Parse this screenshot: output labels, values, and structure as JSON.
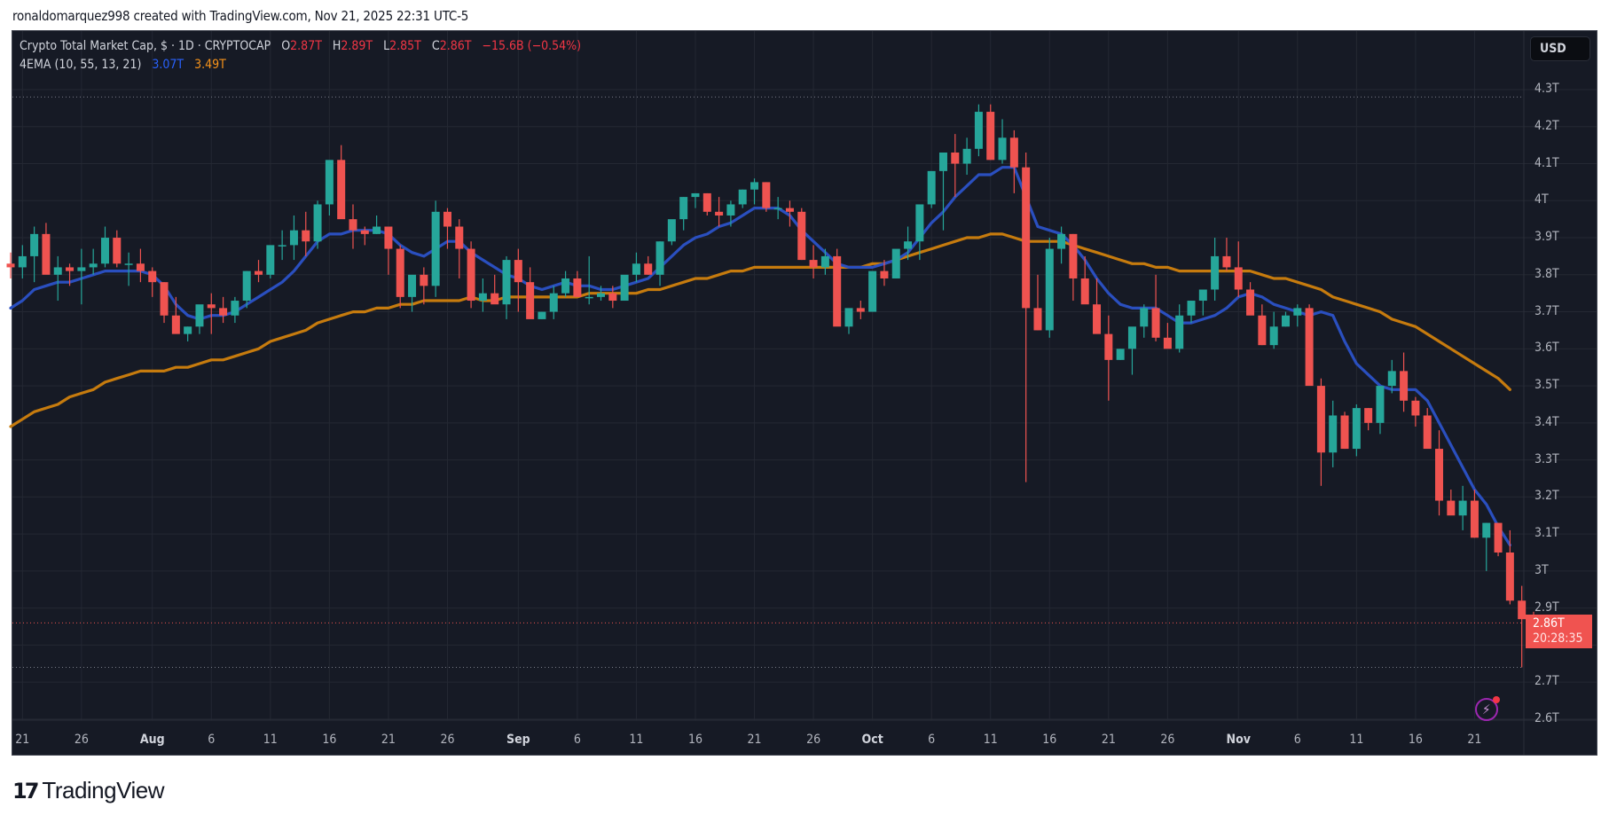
{
  "header": {
    "credit": "ronaldomarquez998 created with TradingView.com, Nov 21, 2025 22:31 UTC-5"
  },
  "legend": {
    "symbol": "Crypto Total Market Cap, $ · 1D · CRYPTOCAP",
    "o_label": "O",
    "o_value": "2.87T",
    "h_label": "H",
    "h_value": "2.89T",
    "l_label": "L",
    "l_value": "2.85T",
    "c_label": "C",
    "c_value": "2.86T",
    "change": "−15.6B (−0.54%)",
    "indicator": "4EMA (10, 55, 13, 21)",
    "ema_fast_value": "3.07T",
    "ema_slow_value": "3.49T"
  },
  "currency_button": "USD",
  "price_label": {
    "price": "2.86T",
    "countdown": "20:28:35"
  },
  "brand": {
    "name": "TradingView"
  },
  "colors": {
    "background": "#161a25",
    "up": "#26a69a",
    "down": "#ef5350",
    "ema_fast": "#2a4fbf",
    "ema_slow": "#c67b0e",
    "grid": "#242833",
    "price_line": "#f05350"
  },
  "chart_data": {
    "type": "candlestick",
    "title": "Crypto Total Market Cap, $ · 1D · CRYPTOCAP",
    "ylabel": "USD",
    "ylim": [
      2.6,
      4.3
    ],
    "y_ticks": [
      "4.3T",
      "4.2T",
      "4.1T",
      "4T",
      "3.9T",
      "3.8T",
      "3.7T",
      "3.6T",
      "3.5T",
      "3.4T",
      "3.3T",
      "3.2T",
      "3.1T",
      "3T",
      "2.9T",
      "2.8T",
      "2.7T",
      "2.6T"
    ],
    "x_ticks": [
      {
        "label": "21",
        "day": 1,
        "bold": false
      },
      {
        "label": "26",
        "day": 6,
        "bold": false
      },
      {
        "label": "Aug",
        "day": 12,
        "bold": true
      },
      {
        "label": "6",
        "day": 17,
        "bold": false
      },
      {
        "label": "11",
        "day": 22,
        "bold": false
      },
      {
        "label": "16",
        "day": 27,
        "bold": false
      },
      {
        "label": "21",
        "day": 32,
        "bold": false
      },
      {
        "label": "26",
        "day": 37,
        "bold": false
      },
      {
        "label": "Sep",
        "day": 43,
        "bold": true
      },
      {
        "label": "6",
        "day": 48,
        "bold": false
      },
      {
        "label": "11",
        "day": 53,
        "bold": false
      },
      {
        "label": "16",
        "day": 58,
        "bold": false
      },
      {
        "label": "21",
        "day": 63,
        "bold": false
      },
      {
        "label": "26",
        "day": 68,
        "bold": false
      },
      {
        "label": "Oct",
        "day": 73,
        "bold": true
      },
      {
        "label": "6",
        "day": 78,
        "bold": false
      },
      {
        "label": "11",
        "day": 83,
        "bold": false
      },
      {
        "label": "16",
        "day": 88,
        "bold": false
      },
      {
        "label": "21",
        "day": 93,
        "bold": false
      },
      {
        "label": "26",
        "day": 98,
        "bold": false
      },
      {
        "label": "Nov",
        "day": 104,
        "bold": true
      },
      {
        "label": "6",
        "day": 109,
        "bold": false
      },
      {
        "label": "11",
        "day": 114,
        "bold": false
      },
      {
        "label": "16",
        "day": 119,
        "bold": false
      },
      {
        "label": "21",
        "day": 124,
        "bold": false
      }
    ],
    "start_date": "Jul 20",
    "ohlc": [
      [
        3.83,
        3.86,
        3.79,
        3.82
      ],
      [
        3.82,
        3.88,
        3.79,
        3.85
      ],
      [
        3.85,
        3.93,
        3.78,
        3.91
      ],
      [
        3.91,
        3.94,
        3.83,
        3.8
      ],
      [
        3.8,
        3.85,
        3.73,
        3.82
      ],
      [
        3.82,
        3.83,
        3.77,
        3.81
      ],
      [
        3.81,
        3.87,
        3.72,
        3.82
      ],
      [
        3.82,
        3.87,
        3.8,
        3.83
      ],
      [
        3.83,
        3.93,
        3.82,
        3.9
      ],
      [
        3.9,
        3.92,
        3.82,
        3.83
      ],
      [
        3.83,
        3.86,
        3.77,
        3.83
      ],
      [
        3.83,
        3.87,
        3.78,
        3.81
      ],
      [
        3.81,
        3.82,
        3.74,
        3.78
      ],
      [
        3.78,
        3.78,
        3.67,
        3.69
      ],
      [
        3.69,
        3.74,
        3.65,
        3.64
      ],
      [
        3.64,
        3.66,
        3.62,
        3.66
      ],
      [
        3.66,
        3.68,
        3.64,
        3.72
      ],
      [
        3.72,
        3.75,
        3.64,
        3.71
      ],
      [
        3.71,
        3.74,
        3.67,
        3.69
      ],
      [
        3.69,
        3.74,
        3.67,
        3.73
      ],
      [
        3.73,
        3.81,
        3.71,
        3.81
      ],
      [
        3.81,
        3.84,
        3.78,
        3.8
      ],
      [
        3.8,
        3.86,
        3.79,
        3.88
      ],
      [
        3.88,
        3.92,
        3.84,
        3.88
      ],
      [
        3.88,
        3.96,
        3.84,
        3.92
      ],
      [
        3.92,
        3.97,
        3.85,
        3.89
      ],
      [
        3.89,
        4.0,
        3.87,
        3.99
      ],
      [
        3.99,
        4.03,
        3.96,
        4.11
      ],
      [
        4.11,
        4.15,
        3.99,
        3.95
      ],
      [
        3.95,
        3.99,
        3.87,
        3.92
      ],
      [
        3.92,
        3.93,
        3.88,
        3.91
      ],
      [
        3.91,
        3.96,
        3.91,
        3.93
      ],
      [
        3.93,
        3.93,
        3.8,
        3.87
      ],
      [
        3.87,
        3.88,
        3.71,
        3.74
      ],
      [
        3.74,
        3.79,
        3.7,
        3.8
      ],
      [
        3.8,
        3.82,
        3.72,
        3.77
      ],
      [
        3.77,
        4.0,
        3.74,
        3.97
      ],
      [
        3.97,
        3.98,
        3.87,
        3.93
      ],
      [
        3.93,
        3.95,
        3.79,
        3.87
      ],
      [
        3.87,
        3.89,
        3.71,
        3.73
      ],
      [
        3.73,
        3.79,
        3.7,
        3.75
      ],
      [
        3.75,
        3.8,
        3.73,
        3.72
      ],
      [
        3.72,
        3.85,
        3.68,
        3.84
      ],
      [
        3.84,
        3.87,
        3.7,
        3.78
      ],
      [
        3.78,
        3.82,
        3.71,
        3.68
      ],
      [
        3.68,
        3.7,
        3.68,
        3.7
      ],
      [
        3.7,
        3.77,
        3.68,
        3.75
      ],
      [
        3.75,
        3.81,
        3.74,
        3.79
      ],
      [
        3.79,
        3.81,
        3.74,
        3.74
      ],
      [
        3.74,
        3.85,
        3.72,
        3.74
      ],
      [
        3.74,
        3.77,
        3.73,
        3.75
      ],
      [
        3.75,
        3.77,
        3.71,
        3.73
      ],
      [
        3.73,
        3.78,
        3.73,
        3.8
      ],
      [
        3.8,
        3.86,
        3.78,
        3.83
      ],
      [
        3.83,
        3.85,
        3.8,
        3.8
      ],
      [
        3.8,
        3.89,
        3.77,
        3.89
      ],
      [
        3.89,
        3.93,
        3.88,
        3.95
      ],
      [
        3.95,
        4.01,
        3.92,
        4.01
      ],
      [
        4.01,
        4.02,
        3.98,
        4.02
      ],
      [
        4.02,
        4.02,
        3.96,
        3.97
      ],
      [
        3.97,
        4.01,
        3.93,
        3.96
      ],
      [
        3.96,
        4.0,
        3.93,
        3.99
      ],
      [
        3.99,
        4.03,
        3.98,
        4.03
      ],
      [
        4.03,
        4.06,
        3.99,
        4.05
      ],
      [
        4.05,
        4.05,
        3.97,
        3.98
      ],
      [
        3.98,
        4.01,
        3.95,
        3.98
      ],
      [
        3.98,
        4.0,
        3.93,
        3.97
      ],
      [
        3.97,
        3.98,
        3.84,
        3.84
      ],
      [
        3.84,
        3.88,
        3.79,
        3.82
      ],
      [
        3.82,
        3.87,
        3.8,
        3.85
      ],
      [
        3.85,
        3.87,
        3.81,
        3.66
      ],
      [
        3.66,
        3.7,
        3.64,
        3.71
      ],
      [
        3.71,
        3.73,
        3.68,
        3.7
      ],
      [
        3.7,
        3.79,
        3.7,
        3.81
      ],
      [
        3.81,
        3.84,
        3.77,
        3.79
      ],
      [
        3.79,
        3.84,
        3.79,
        3.87
      ],
      [
        3.87,
        3.93,
        3.84,
        3.89
      ],
      [
        3.89,
        3.89,
        3.84,
        3.99
      ],
      [
        3.99,
        4.03,
        3.98,
        4.08
      ],
      [
        4.08,
        4.12,
        3.92,
        4.13
      ],
      [
        4.13,
        4.18,
        4.01,
        4.1
      ],
      [
        4.1,
        4.17,
        4.07,
        4.14
      ],
      [
        4.14,
        4.26,
        4.12,
        4.24
      ],
      [
        4.24,
        4.26,
        4.11,
        4.11
      ],
      [
        4.11,
        4.22,
        4.1,
        4.17
      ],
      [
        4.17,
        4.19,
        4.02,
        4.09
      ],
      [
        4.09,
        4.13,
        3.24,
        3.71
      ],
      [
        3.71,
        3.8,
        3.65,
        3.65
      ],
      [
        3.65,
        3.9,
        3.63,
        3.87
      ],
      [
        3.87,
        3.93,
        3.83,
        3.91
      ],
      [
        3.91,
        3.91,
        3.73,
        3.79
      ],
      [
        3.79,
        3.85,
        3.76,
        3.72
      ],
      [
        3.72,
        3.79,
        3.68,
        3.64
      ],
      [
        3.64,
        3.69,
        3.46,
        3.57
      ],
      [
        3.57,
        3.6,
        3.57,
        3.6
      ],
      [
        3.6,
        3.65,
        3.53,
        3.66
      ],
      [
        3.66,
        3.72,
        3.63,
        3.71
      ],
      [
        3.71,
        3.8,
        3.62,
        3.63
      ],
      [
        3.63,
        3.67,
        3.61,
        3.6
      ],
      [
        3.6,
        3.72,
        3.59,
        3.69
      ],
      [
        3.69,
        3.73,
        3.67,
        3.73
      ],
      [
        3.73,
        3.75,
        3.69,
        3.76
      ],
      [
        3.76,
        3.9,
        3.73,
        3.85
      ],
      [
        3.85,
        3.9,
        3.81,
        3.82
      ],
      [
        3.82,
        3.89,
        3.74,
        3.76
      ],
      [
        3.76,
        3.78,
        3.71,
        3.69
      ],
      [
        3.69,
        3.72,
        3.61,
        3.61
      ],
      [
        3.61,
        3.7,
        3.6,
        3.66
      ],
      [
        3.66,
        3.7,
        3.66,
        3.69
      ],
      [
        3.69,
        3.72,
        3.66,
        3.71
      ],
      [
        3.71,
        3.72,
        3.58,
        3.5
      ],
      [
        3.5,
        3.52,
        3.23,
        3.32
      ],
      [
        3.32,
        3.46,
        3.28,
        3.42
      ],
      [
        3.42,
        3.43,
        3.33,
        3.33
      ],
      [
        3.33,
        3.45,
        3.31,
        3.44
      ],
      [
        3.44,
        3.44,
        3.38,
        3.4
      ],
      [
        3.4,
        3.5,
        3.37,
        3.5
      ],
      [
        3.5,
        3.57,
        3.48,
        3.54
      ],
      [
        3.54,
        3.59,
        3.43,
        3.46
      ],
      [
        3.46,
        3.47,
        3.39,
        3.42
      ],
      [
        3.42,
        3.44,
        3.34,
        3.33
      ],
      [
        3.33,
        3.38,
        3.15,
        3.19
      ],
      [
        3.19,
        3.22,
        3.16,
        3.15
      ],
      [
        3.15,
        3.23,
        3.11,
        3.19
      ],
      [
        3.19,
        3.22,
        3.09,
        3.09
      ],
      [
        3.09,
        3.13,
        3.0,
        3.13
      ],
      [
        3.13,
        3.13,
        3.04,
        3.05
      ],
      [
        3.05,
        3.11,
        2.91,
        2.92
      ],
      [
        2.92,
        2.96,
        2.74,
        2.87
      ],
      [
        2.87,
        2.89,
        2.85,
        2.86
      ]
    ],
    "ema_fast": [
      3.71,
      3.73,
      3.76,
      3.77,
      3.78,
      3.78,
      3.79,
      3.8,
      3.81,
      3.81,
      3.81,
      3.81,
      3.8,
      3.77,
      3.72,
      3.69,
      3.68,
      3.69,
      3.69,
      3.7,
      3.72,
      3.74,
      3.76,
      3.78,
      3.81,
      3.85,
      3.89,
      3.91,
      3.91,
      3.92,
      3.92,
      3.92,
      3.91,
      3.88,
      3.86,
      3.85,
      3.87,
      3.89,
      3.89,
      3.86,
      3.84,
      3.82,
      3.8,
      3.79,
      3.77,
      3.76,
      3.77,
      3.78,
      3.77,
      3.77,
      3.76,
      3.76,
      3.77,
      3.78,
      3.79,
      3.82,
      3.85,
      3.88,
      3.9,
      3.91,
      3.93,
      3.94,
      3.96,
      3.98,
      3.98,
      3.98,
      3.96,
      3.92,
      3.89,
      3.86,
      3.83,
      3.82,
      3.82,
      3.82,
      3.83,
      3.84,
      3.86,
      3.9,
      3.94,
      3.97,
      4.01,
      4.04,
      4.07,
      4.07,
      4.09,
      4.09,
      4.01,
      3.93,
      3.92,
      3.91,
      3.88,
      3.84,
      3.79,
      3.75,
      3.72,
      3.71,
      3.71,
      3.71,
      3.69,
      3.67,
      3.67,
      3.68,
      3.69,
      3.71,
      3.74,
      3.75,
      3.74,
      3.72,
      3.71,
      3.7,
      3.69,
      3.7,
      3.69,
      3.62,
      3.56,
      3.53,
      3.5,
      3.49,
      3.49,
      3.49,
      3.46,
      3.4,
      3.34,
      3.28,
      3.22,
      3.18,
      3.12,
      3.07
    ],
    "ema_slow": [
      3.39,
      3.41,
      3.43,
      3.44,
      3.45,
      3.47,
      3.48,
      3.49,
      3.51,
      3.52,
      3.53,
      3.54,
      3.54,
      3.54,
      3.55,
      3.55,
      3.56,
      3.57,
      3.57,
      3.58,
      3.59,
      3.6,
      3.62,
      3.63,
      3.64,
      3.65,
      3.67,
      3.68,
      3.69,
      3.7,
      3.7,
      3.71,
      3.71,
      3.72,
      3.72,
      3.73,
      3.73,
      3.73,
      3.73,
      3.74,
      3.73,
      3.73,
      3.74,
      3.74,
      3.74,
      3.74,
      3.74,
      3.74,
      3.74,
      3.75,
      3.75,
      3.75,
      3.75,
      3.75,
      3.76,
      3.76,
      3.77,
      3.78,
      3.79,
      3.79,
      3.8,
      3.81,
      3.81,
      3.82,
      3.82,
      3.82,
      3.82,
      3.82,
      3.82,
      3.82,
      3.82,
      3.82,
      3.82,
      3.83,
      3.83,
      3.84,
      3.85,
      3.86,
      3.87,
      3.88,
      3.89,
      3.9,
      3.9,
      3.91,
      3.91,
      3.9,
      3.89,
      3.89,
      3.89,
      3.89,
      3.88,
      3.87,
      3.86,
      3.85,
      3.84,
      3.83,
      3.83,
      3.82,
      3.82,
      3.81,
      3.81,
      3.81,
      3.81,
      3.81,
      3.81,
      3.81,
      3.8,
      3.79,
      3.79,
      3.78,
      3.77,
      3.76,
      3.74,
      3.73,
      3.72,
      3.71,
      3.7,
      3.68,
      3.67,
      3.66,
      3.64,
      3.62,
      3.6,
      3.58,
      3.56,
      3.54,
      3.52,
      3.49
    ],
    "last_price": 2.86,
    "upper_dotted_line": 4.28,
    "lower_dotted_line": 2.74
  }
}
